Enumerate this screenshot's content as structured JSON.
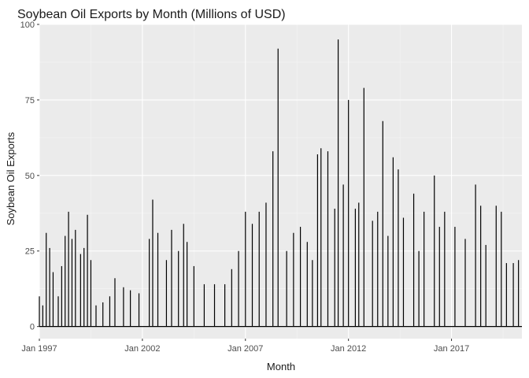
{
  "chart_data": {
    "type": "bar",
    "title": "Soybean Oil Exports by Month (Millions of USD)",
    "xlabel": "Month",
    "ylabel": "Soybean Oil Exports",
    "xlim": [
      "1997-01",
      "2020-06"
    ],
    "ylim": [
      -4,
      100
    ],
    "x_ticks": [
      "Jan 1997",
      "Jan 2002",
      "Jan 2007",
      "Jan 2012",
      "Jan 2017"
    ],
    "y_ticks": [
      "0",
      "25",
      "50",
      "75",
      "100"
    ],
    "grid": true,
    "legend": "none",
    "bar_color": "#000000",
    "panel_background": "#ebebeb",
    "series": [
      {
        "values": [
          {
            "x": "1997-01",
            "y": 10
          },
          {
            "x": "1997-03",
            "y": 7
          },
          {
            "x": "1997-05",
            "y": 31
          },
          {
            "x": "1997-07",
            "y": 26
          },
          {
            "x": "1997-09",
            "y": 18
          },
          {
            "x": "1997-12",
            "y": 10
          },
          {
            "x": "1998-02",
            "y": 20
          },
          {
            "x": "1998-04",
            "y": 30
          },
          {
            "x": "1998-06",
            "y": 38
          },
          {
            "x": "1998-08",
            "y": 29
          },
          {
            "x": "1998-10",
            "y": 32
          },
          {
            "x": "1999-01",
            "y": 24
          },
          {
            "x": "1999-03",
            "y": 26
          },
          {
            "x": "1999-05",
            "y": 37
          },
          {
            "x": "1999-07",
            "y": 22
          },
          {
            "x": "1999-10",
            "y": 7
          },
          {
            "x": "2000-02",
            "y": 8
          },
          {
            "x": "2000-06",
            "y": 10
          },
          {
            "x": "2000-09",
            "y": 16
          },
          {
            "x": "2001-02",
            "y": 13
          },
          {
            "x": "2001-06",
            "y": 12
          },
          {
            "x": "2001-11",
            "y": 11
          },
          {
            "x": "2002-05",
            "y": 29
          },
          {
            "x": "2002-07",
            "y": 42
          },
          {
            "x": "2002-10",
            "y": 31
          },
          {
            "x": "2003-03",
            "y": 22
          },
          {
            "x": "2003-06",
            "y": 32
          },
          {
            "x": "2003-10",
            "y": 25
          },
          {
            "x": "2004-01",
            "y": 34
          },
          {
            "x": "2004-03",
            "y": 28
          },
          {
            "x": "2004-07",
            "y": 20
          },
          {
            "x": "2005-01",
            "y": 14
          },
          {
            "x": "2005-07",
            "y": 14
          },
          {
            "x": "2006-01",
            "y": 14
          },
          {
            "x": "2006-05",
            "y": 19
          },
          {
            "x": "2006-09",
            "y": 25
          },
          {
            "x": "2007-01",
            "y": 38
          },
          {
            "x": "2007-05",
            "y": 34
          },
          {
            "x": "2007-09",
            "y": 38
          },
          {
            "x": "2008-01",
            "y": 41
          },
          {
            "x": "2008-05",
            "y": 58
          },
          {
            "x": "2008-08",
            "y": 92
          },
          {
            "x": "2009-01",
            "y": 25
          },
          {
            "x": "2009-05",
            "y": 31
          },
          {
            "x": "2009-09",
            "y": 33
          },
          {
            "x": "2010-01",
            "y": 28
          },
          {
            "x": "2010-04",
            "y": 22
          },
          {
            "x": "2010-07",
            "y": 57
          },
          {
            "x": "2010-09",
            "y": 59
          },
          {
            "x": "2011-01",
            "y": 58
          },
          {
            "x": "2011-05",
            "y": 39
          },
          {
            "x": "2011-07",
            "y": 95
          },
          {
            "x": "2011-10",
            "y": 47
          },
          {
            "x": "2012-01",
            "y": 75
          },
          {
            "x": "2012-05",
            "y": 39
          },
          {
            "x": "2012-07",
            "y": 41
          },
          {
            "x": "2012-10",
            "y": 79
          },
          {
            "x": "2013-03",
            "y": 35
          },
          {
            "x": "2013-06",
            "y": 38
          },
          {
            "x": "2013-09",
            "y": 68
          },
          {
            "x": "2013-12",
            "y": 30
          },
          {
            "x": "2014-03",
            "y": 56
          },
          {
            "x": "2014-06",
            "y": 52
          },
          {
            "x": "2014-09",
            "y": 36
          },
          {
            "x": "2015-03",
            "y": 44
          },
          {
            "x": "2015-06",
            "y": 25
          },
          {
            "x": "2015-09",
            "y": 38
          },
          {
            "x": "2016-03",
            "y": 50
          },
          {
            "x": "2016-06",
            "y": 33
          },
          {
            "x": "2016-09",
            "y": 38
          },
          {
            "x": "2017-03",
            "y": 33
          },
          {
            "x": "2017-09",
            "y": 29
          },
          {
            "x": "2018-03",
            "y": 47
          },
          {
            "x": "2018-06",
            "y": 40
          },
          {
            "x": "2018-09",
            "y": 27
          },
          {
            "x": "2019-03",
            "y": 40
          },
          {
            "x": "2019-06",
            "y": 38
          },
          {
            "x": "2019-09",
            "y": 21
          },
          {
            "x": "2020-01",
            "y": 21
          },
          {
            "x": "2020-04",
            "y": 22
          }
        ]
      }
    ]
  }
}
